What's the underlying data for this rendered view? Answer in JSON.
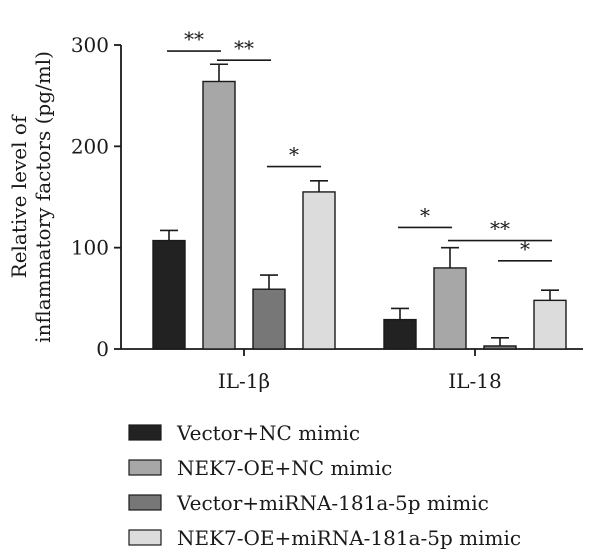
{
  "chart_data": {
    "type": "bar",
    "title": "",
    "xlabel": "",
    "ylabel_lines": [
      "Relative level of",
      "inflammatory factors (pg/ml)"
    ],
    "ylim": [
      0,
      300
    ],
    "yticks": [
      0,
      100,
      200,
      300
    ],
    "categories": [
      "IL-1β",
      "IL-18"
    ],
    "series": [
      {
        "name": "Vector+NC mimic",
        "color": "#222222",
        "values": [
          107,
          29
        ],
        "errors": [
          10,
          11
        ]
      },
      {
        "name": "NEK7-OE+NC mimic",
        "color": "#a7a7a7",
        "values": [
          264,
          80
        ],
        "errors": [
          17,
          20
        ]
      },
      {
        "name": "Vector+miRNA-181a-5p mimic",
        "color": "#777777",
        "values": [
          59,
          3
        ],
        "errors": [
          14,
          8
        ]
      },
      {
        "name": "NEK7-OE+miRNA-181a-5p mimic",
        "color": "#dcdcdc",
        "values": [
          155,
          48
        ],
        "errors": [
          11,
          10
        ]
      }
    ],
    "significance": [
      {
        "category": 0,
        "from": 0,
        "to": 1,
        "label": "**",
        "y": 294
      },
      {
        "category": 0,
        "from": 1,
        "to": 2,
        "label": "**",
        "y": 285
      },
      {
        "category": 0,
        "from": 2,
        "to": 3,
        "label": "*",
        "y": 180
      },
      {
        "category": 1,
        "from": 0,
        "to": 1,
        "label": "*",
        "y": 120
      },
      {
        "category": 1,
        "from": 1,
        "to": 3,
        "label": "**",
        "y": 107
      },
      {
        "category": 1,
        "from": 2,
        "to": 3,
        "label": "*",
        "y": 87
      }
    ],
    "legend_position": "bottom",
    "grid": false
  }
}
